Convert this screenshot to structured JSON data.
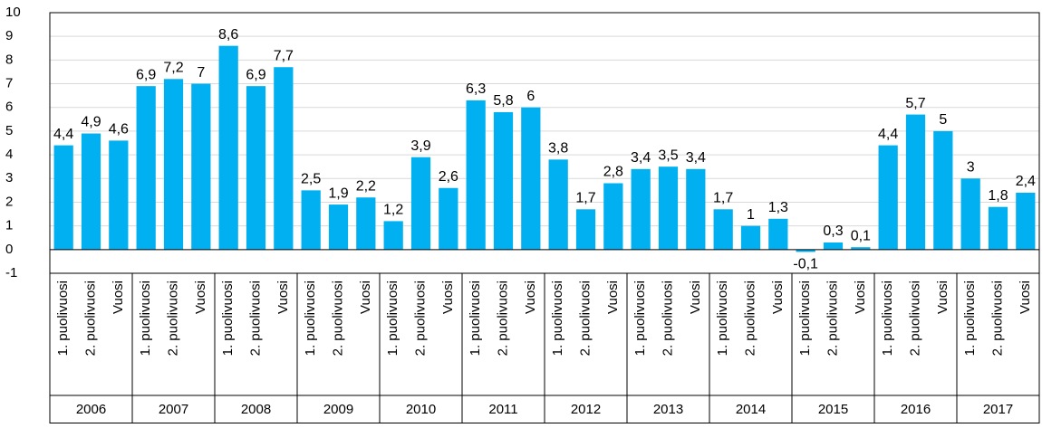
{
  "chart_data": {
    "type": "bar",
    "categories": [
      "1. puolivuosi",
      "2. puolivuosi",
      "Vuosi",
      "1. puolivuosi",
      "2. puolivuosi",
      "Vuosi",
      "1. puolivuosi",
      "2. puolivuosi",
      "Vuosi",
      "1. puolivuosi",
      "2. puolivuosi",
      "Vuosi",
      "1. puolivuosi",
      "2. puolivuosi",
      "Vuosi",
      "1. puolivuosi",
      "2. puolivuosi",
      "Vuosi",
      "1. puolivuosi",
      "2. puolivuosi",
      "Vuosi",
      "1. puolivuosi",
      "2. puolivuosi",
      "Vuosi",
      "1. puolivuosi",
      "2. puolivuosi",
      "Vuosi",
      "1. puolivuosi",
      "2. puolivuosi",
      "Vuosi",
      "1. puolivuosi",
      "2. puolivuosi",
      "Vuosi",
      "1. puolivuosi",
      "2. puolivuosi",
      "Vuosi"
    ],
    "groups": [
      "2006",
      "2007",
      "2008",
      "2009",
      "2010",
      "2011",
      "2012",
      "2013",
      "2014",
      "2015",
      "2016",
      "2017"
    ],
    "values": [
      4.4,
      4.9,
      4.6,
      6.9,
      7.2,
      7,
      8.6,
      6.9,
      7.7,
      2.5,
      1.9,
      2.2,
      1.2,
      3.9,
      2.6,
      6.3,
      5.8,
      6,
      3.8,
      1.7,
      2.8,
      3.4,
      3.5,
      3.4,
      1.7,
      1,
      1.3,
      -0.1,
      0.3,
      0.1,
      4.4,
      5.7,
      5,
      3,
      1.8,
      2.4
    ],
    "value_labels": [
      "4,4",
      "4,9",
      "4,6",
      "6,9",
      "7,2",
      "7",
      "8,6",
      "6,9",
      "7,7",
      "2,5",
      "1,9",
      "2,2",
      "1,2",
      "3,9",
      "2,6",
      "6,3",
      "5,8",
      "6",
      "3,8",
      "1,7",
      "2,8",
      "3,4",
      "3,5",
      "3,4",
      "1,7",
      "1",
      "1,3",
      "-0,1",
      "0,3",
      "0,1",
      "4,4",
      "5,7",
      "5",
      "3",
      "1,8",
      "2,4"
    ],
    "color": "#00b0f0",
    "ylim": [
      -1,
      10
    ],
    "yticks": [
      -1,
      0,
      1,
      2,
      3,
      4,
      5,
      6,
      7,
      8,
      9,
      10
    ],
    "grid": true
  }
}
